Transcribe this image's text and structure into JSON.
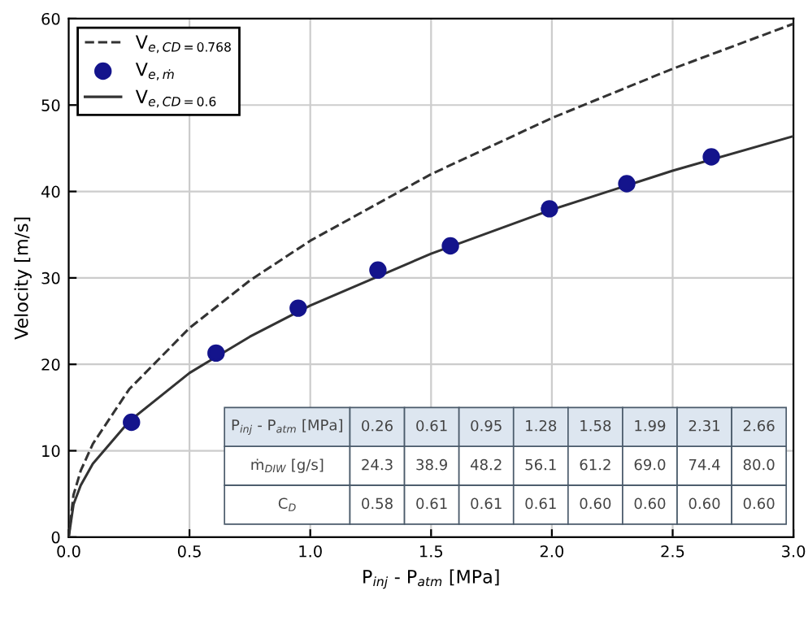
{
  "chart_data": {
    "type": "line",
    "xlabel": "P$_{inj}$ - P$_{atm}$ [MPa]",
    "ylabel": "Velocity [m/s]",
    "xlim": [
      0,
      3
    ],
    "ylim": [
      0,
      60
    ],
    "xticks": [
      {
        "value": 0,
        "label": "0.0"
      },
      0.5,
      {
        "value": 1,
        "label": "1.0"
      },
      1.5,
      {
        "value": 2,
        "label": "2.0"
      },
      2.5,
      {
        "value": 3,
        "label": "3.0"
      }
    ],
    "yticks": [
      0,
      10,
      20,
      30,
      40,
      50,
      60
    ],
    "grid": true,
    "legend": "top left",
    "series": [
      {
        "name": "V$_{e,CD=0.768}$",
        "type": "line",
        "line_style": "dashed",
        "marker": "none",
        "color": "#333333",
        "x": [
          0,
          0.02,
          0.05,
          0.1,
          0.25,
          0.5,
          0.75,
          1,
          1.5,
          2,
          2.5,
          3
        ],
        "values": [
          0,
          4.9,
          7.7,
          10.8,
          17.1,
          24.2,
          29.7,
          34.3,
          42.0,
          48.5,
          54.2,
          59.4
        ]
      },
      {
        "name": "V$_{e,ṁ}$",
        "type": "scatter",
        "marker": "circle",
        "color": "#14148c",
        "x": [
          0.26,
          0.61,
          0.95,
          1.28,
          1.58,
          1.99,
          2.31,
          2.66
        ],
        "values": [
          13.3,
          21.3,
          26.5,
          30.9,
          33.7,
          38.0,
          40.9,
          44.0
        ]
      },
      {
        "name": "V$_{e,C̄D=0.6}$",
        "type": "line",
        "line_style": "solid",
        "marker": "none",
        "color": "#333333",
        "x": [
          0,
          0.02,
          0.05,
          0.1,
          0.25,
          0.5,
          0.75,
          1,
          1.5,
          2,
          2.5,
          3
        ],
        "values": [
          0,
          3.8,
          6.0,
          8.5,
          13.4,
          19.0,
          23.2,
          26.8,
          32.8,
          37.9,
          42.4,
          46.4
        ]
      }
    ],
    "annotations": [
      "P$_{inj}$ - P$_{atm}$ [MPa]",
      "0.26",
      "0.61",
      "0.95",
      "1.28",
      "1.58",
      "1.99",
      "2.31",
      "2.66",
      "ṁ$_{DIW}$ [g/s]",
      "24.3",
      "38.9",
      "48.2",
      "56.1",
      "61.2",
      "69.0",
      "74.4",
      "80.0",
      "C$_{D}$",
      "0.58",
      "0.61",
      "0.61",
      "0.61",
      "0.60",
      "0.60",
      "0.60",
      "0.60"
    ]
  }
}
